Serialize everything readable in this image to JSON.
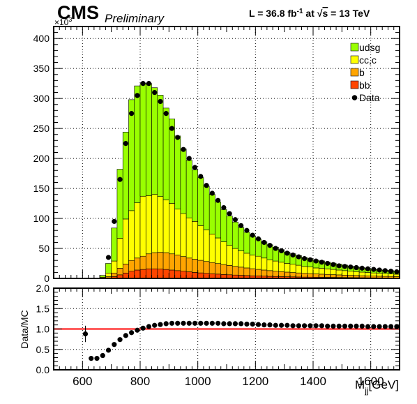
{
  "header": {
    "experiment": "CMS",
    "status": "Preliminary",
    "lumi_prefix": "L = 36.8 fb",
    "lumi_exp": "-1",
    "lumi_mid": " at  ",
    "sqrt": "√",
    "energy_var": "s",
    "energy_val": " = 13 TeV"
  },
  "chart_data": [
    {
      "type": "bar",
      "stacked": true,
      "y_multiplier_label": "×10",
      "y_multiplier_exp": "3",
      "xlabel": "M",
      "xlabel_sub": "jj",
      "xlabel_unit": "[GeV]",
      "ylabel": "",
      "xlim": [
        500,
        1700
      ],
      "ylim": [
        0,
        420
      ],
      "y_ticks": [
        0,
        50,
        100,
        150,
        200,
        250,
        300,
        350,
        400
      ],
      "x_ticks": [
        600,
        800,
        1000,
        1200,
        1400,
        1600
      ],
      "grid": true,
      "legend_position": "top-right",
      "bin_width": 20,
      "bin_edges_start": 500,
      "series": [
        {
          "name": "bb",
          "color": "#ff4500",
          "values": [
            0,
            0,
            0,
            0,
            0,
            0,
            0,
            0,
            0.5,
            1,
            3,
            6,
            9,
            12,
            14,
            15,
            16,
            16,
            15.5,
            15,
            14,
            13,
            12,
            11,
            10,
            9.2,
            8.5,
            7.8,
            7.2,
            6.6,
            6.1,
            5.6,
            5.2,
            4.8,
            4.4,
            4.1,
            3.8,
            3.5,
            3.2,
            3.0,
            2.8,
            2.6,
            2.4,
            2.2,
            2.1,
            2.0,
            1.9,
            1.8,
            1.7,
            1.6,
            1.5,
            1.4,
            1.3,
            1.2,
            1.1,
            1.0,
            0.95,
            0.9,
            0.85,
            0.8
          ]
        },
        {
          "name": "b",
          "color": "#ffa500",
          "values": [
            0,
            0,
            0,
            0,
            0,
            0,
            0,
            0,
            0.5,
            2,
            6,
            11,
            15,
            18,
            20,
            22,
            25,
            27,
            28,
            28,
            27,
            26,
            24.5,
            23,
            22,
            21,
            19.8,
            18.7,
            17.6,
            16.6,
            15.6,
            14.6,
            13.6,
            12.7,
            11.8,
            11,
            10.2,
            9.5,
            8.9,
            8.3,
            7.7,
            7.2,
            6.7,
            6.3,
            5.9,
            5.5,
            5.2,
            4.9,
            4.6,
            4.3,
            4.0,
            3.7,
            3.5,
            3.3,
            3.1,
            2.9,
            2.7,
            2.55,
            2.4,
            2.25
          ]
        },
        {
          "name": "cc,c",
          "color": "#ffff00",
          "values": [
            0,
            0,
            0,
            0,
            0,
            0,
            0,
            0,
            1,
            6,
            20,
            50,
            75,
            83,
            92,
            100,
            97,
            97,
            93,
            88,
            84,
            76.5,
            71.5,
            67,
            63,
            57.8,
            52.7,
            47.5,
            42.7,
            37.8,
            33.3,
            29.8,
            27.2,
            24.5,
            22.8,
            21.9,
            20,
            18,
            16.9,
            15.7,
            14.5,
            13.8,
            12.9,
            11.5,
            11,
            10,
            9.9,
            9.2,
            8.7,
            8.1,
            7.5,
            7.0,
            6.5,
            6.0,
            5.6,
            5.2,
            4.8,
            4.45,
            4.2,
            3.95
          ]
        },
        {
          "name": "udsg",
          "color": "#99ff00",
          "values": [
            0,
            0,
            0,
            0,
            0,
            0,
            0,
            0,
            3,
            16,
            55,
            115,
            145,
            185,
            195,
            188,
            187,
            178,
            169,
            153,
            141,
            122,
            108,
            96,
            86,
            80,
            73,
            66,
            60,
            54,
            49,
            44,
            39,
            35,
            32,
            29,
            27,
            25,
            23,
            21,
            19,
            17.5,
            16,
            15,
            14,
            13,
            12.2,
            11.3,
            10.5,
            9.8,
            9.2,
            8.5,
            7.9,
            7.4,
            6.9,
            6.5,
            6.1,
            5.75,
            5.45,
            5.1
          ]
        }
      ],
      "data_points": {
        "name": "Data",
        "x": [
          690,
          710,
          730,
          750,
          770,
          790,
          810,
          830,
          850,
          870,
          890,
          910,
          930,
          950,
          970,
          990,
          1010,
          1030,
          1050,
          1070,
          1090,
          1110,
          1130,
          1150,
          1170,
          1190,
          1210,
          1230,
          1250,
          1270,
          1290,
          1310,
          1330,
          1350,
          1370,
          1390,
          1410,
          1430,
          1450,
          1470,
          1490,
          1510,
          1530,
          1550,
          1570,
          1590,
          1610,
          1630,
          1650,
          1670,
          1690
        ],
        "y": [
          35,
          95,
          165,
          225,
          275,
          305,
          325,
          325,
          310,
          295,
          275,
          250,
          235,
          215,
          200,
          185,
          170,
          155,
          142,
          130,
          118,
          108,
          98,
          88,
          80,
          72,
          66,
          60,
          55,
          50,
          46,
          42,
          39,
          36,
          33,
          31,
          29,
          27,
          25,
          23,
          21,
          20,
          19,
          18,
          17,
          16,
          15,
          14,
          13,
          12,
          11
        ]
      },
      "legend": [
        "udsg",
        "cc,c",
        "b",
        "bb",
        "Data"
      ]
    },
    {
      "type": "scatter",
      "ylabel": "Data/MC",
      "xlim": [
        500,
        1700
      ],
      "ylim": [
        0,
        2
      ],
      "y_ticks": [
        0.0,
        0.5,
        1.0,
        1.5,
        2.0
      ],
      "y_tick_labels": [
        "0.0",
        "0.5",
        "1.0",
        "1.5",
        "2.0"
      ],
      "x_ticks": [
        600,
        800,
        1000,
        1200,
        1400,
        1600
      ],
      "grid": true,
      "reference_line": {
        "from_x": 500,
        "to_x": 1700,
        "y": 1.0,
        "color": "#ff0000"
      },
      "data_points": {
        "x": [
          610,
          630,
          650,
          670,
          690,
          710,
          730,
          750,
          770,
          790,
          810,
          830,
          850,
          870,
          890,
          910,
          930,
          950,
          970,
          990,
          1010,
          1030,
          1050,
          1070,
          1090,
          1110,
          1130,
          1150,
          1170,
          1190,
          1210,
          1230,
          1250,
          1270,
          1290,
          1310,
          1330,
          1350,
          1370,
          1390,
          1410,
          1430,
          1450,
          1470,
          1490,
          1510,
          1530,
          1550,
          1570,
          1590,
          1610,
          1630,
          1650,
          1670,
          1690
        ],
        "y": [
          0.88,
          0.28,
          0.28,
          0.35,
          0.48,
          0.62,
          0.74,
          0.84,
          0.91,
          0.97,
          1.02,
          1.06,
          1.09,
          1.11,
          1.13,
          1.14,
          1.14,
          1.14,
          1.14,
          1.14,
          1.14,
          1.14,
          1.14,
          1.14,
          1.13,
          1.13,
          1.13,
          1.13,
          1.12,
          1.12,
          1.11,
          1.1,
          1.1,
          1.09,
          1.09,
          1.09,
          1.08,
          1.08,
          1.08,
          1.08,
          1.08,
          1.08,
          1.07,
          1.07,
          1.07,
          1.07,
          1.07,
          1.07,
          1.07,
          1.06,
          1.06,
          1.06,
          1.06,
          1.06,
          1.06
        ],
        "errors": [
          0.2,
          0,
          0,
          0,
          0,
          0,
          0,
          0,
          0,
          0,
          0,
          0,
          0,
          0,
          0,
          0,
          0,
          0,
          0,
          0,
          0,
          0,
          0,
          0,
          0,
          0,
          0,
          0,
          0,
          0,
          0,
          0,
          0,
          0,
          0,
          0,
          0,
          0,
          0,
          0,
          0,
          0,
          0,
          0,
          0,
          0,
          0,
          0,
          0,
          0,
          0,
          0,
          0,
          0,
          0
        ]
      }
    }
  ]
}
